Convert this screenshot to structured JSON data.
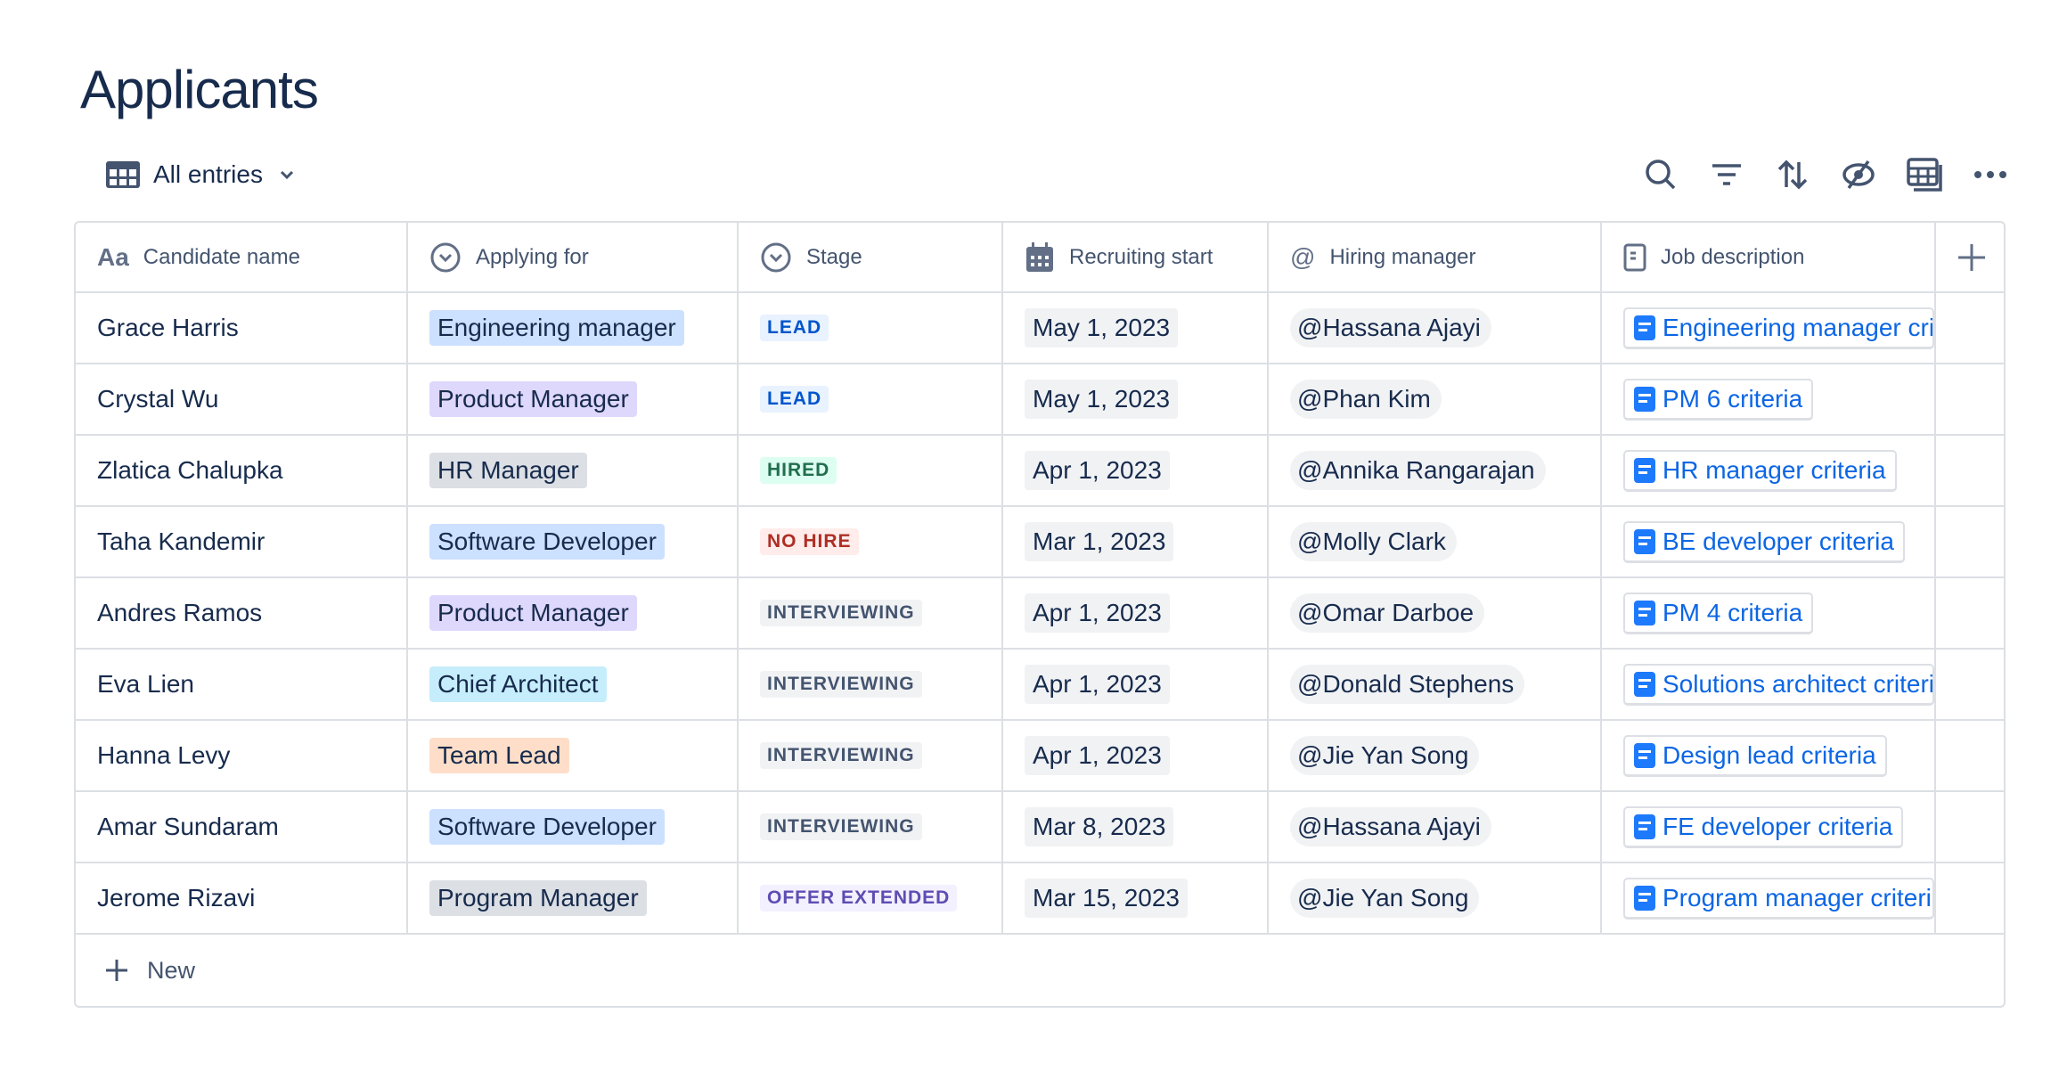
{
  "title": "Applicants",
  "view": {
    "label": "All entries",
    "icon": "table-icon"
  },
  "toolbar": {
    "icons": [
      "search-icon",
      "filter-icon",
      "sort-icon",
      "hide-icon",
      "table-settings-icon",
      "more-icon"
    ]
  },
  "columns": [
    {
      "label": "Candidate name",
      "icon": "text-icon"
    },
    {
      "label": "Applying for",
      "icon": "select-icon"
    },
    {
      "label": "Stage",
      "icon": "select-icon"
    },
    {
      "label": "Recruiting start",
      "icon": "calendar-icon"
    },
    {
      "label": "Hiring manager",
      "icon": "mention-icon"
    },
    {
      "label": "Job description",
      "icon": "document-icon"
    }
  ],
  "rows": [
    {
      "name": "Grace Harris",
      "role": "Engineering manager",
      "role_color": "#cce0ff",
      "stage": "LEAD",
      "stage_bg": "#e9f2ff",
      "stage_fg": "#0055cc",
      "date": "May 1, 2023",
      "manager": "Hassana Ajayi",
      "doc": "Engineering manager criteria"
    },
    {
      "name": "Crystal Wu",
      "role": "Product Manager",
      "role_color": "#dfd8fd",
      "stage": "LEAD",
      "stage_bg": "#e9f2ff",
      "stage_fg": "#0055cc",
      "date": "May 1, 2023",
      "manager": "Phan Kim",
      "doc": "PM 6 criteria"
    },
    {
      "name": "Zlatica Chalupka",
      "role": "HR Manager",
      "role_color": "#dcdfe4",
      "stage": "HIRED",
      "stage_bg": "#dcfff1",
      "stage_fg": "#216e4e",
      "date": "Apr 1, 2023",
      "manager": "Annika Rangarajan",
      "doc": "HR manager criteria"
    },
    {
      "name": "Taha Kandemir",
      "role": "Software Developer",
      "role_color": "#cce0ff",
      "stage": "NO HIRE",
      "stage_bg": "#ffeceb",
      "stage_fg": "#ae2e24",
      "date": "Mar 1, 2023",
      "manager": "Molly Clark",
      "doc": "BE developer criteria"
    },
    {
      "name": "Andres Ramos",
      "role": "Product Manager",
      "role_color": "#dfd8fd",
      "stage": "INTERVIEWING",
      "stage_bg": "#f1f2f4",
      "stage_fg": "#44546f",
      "date": "Apr 1, 2023",
      "manager": "Omar Darboe",
      "doc": "PM 4 criteria"
    },
    {
      "name": "Eva Lien",
      "role": "Chief Architect",
      "role_color": "#c6edfb",
      "stage": "INTERVIEWING",
      "stage_bg": "#f1f2f4",
      "stage_fg": "#44546f",
      "date": "Apr 1, 2023",
      "manager": "Donald Stephens",
      "doc": "Solutions architect criteria"
    },
    {
      "name": "Hanna Levy",
      "role": "Team Lead",
      "role_color": "#fedec8",
      "stage": "INTERVIEWING",
      "stage_bg": "#f1f2f4",
      "stage_fg": "#44546f",
      "date": "Apr 1, 2023",
      "manager": "Jie Yan Song",
      "doc": "Design lead criteria"
    },
    {
      "name": "Amar Sundaram",
      "role": "Software Developer",
      "role_color": "#cce0ff",
      "stage": "INTERVIEWING",
      "stage_bg": "#f1f2f4",
      "stage_fg": "#44546f",
      "date": "Mar 8, 2023",
      "manager": "Hassana Ajayi",
      "doc": "FE developer criteria"
    },
    {
      "name": "Jerome Rizavi",
      "role": "Program Manager",
      "role_color": "#dcdfe4",
      "stage": "OFFER EXTENDED",
      "stage_bg": "#f3f0ff",
      "stage_fg": "#5e4db2",
      "date": "Mar 15, 2023",
      "manager": "Jie Yan Song",
      "doc": "Program manager criteria"
    }
  ],
  "mention_prefix": "@",
  "new_row": {
    "label": "New",
    "icon": "plus-icon"
  }
}
